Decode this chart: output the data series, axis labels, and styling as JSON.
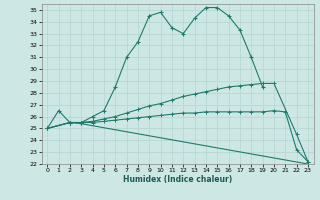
{
  "xlabel": "Humidex (Indice chaleur)",
  "background_color": "#cde8e4",
  "grid_color": "#b8d8d4",
  "line_color": "#1e7a6e",
  "xlim": [
    -0.5,
    23.5
  ],
  "ylim": [
    22,
    35.5
  ],
  "yticks": [
    22,
    23,
    24,
    25,
    26,
    27,
    28,
    29,
    30,
    31,
    32,
    33,
    34,
    35
  ],
  "xticks": [
    0,
    1,
    2,
    3,
    4,
    5,
    6,
    7,
    8,
    9,
    10,
    11,
    12,
    13,
    14,
    15,
    16,
    17,
    18,
    19,
    20,
    21,
    22,
    23
  ],
  "lines": [
    {
      "x": [
        0,
        1,
        2,
        3,
        4,
        5,
        6,
        7,
        8,
        9,
        10,
        11,
        12,
        13,
        14,
        15,
        16,
        17,
        18,
        19
      ],
      "y": [
        25.0,
        26.5,
        25.5,
        25.5,
        26.0,
        26.5,
        28.5,
        31.0,
        32.3,
        34.5,
        34.8,
        33.5,
        33.0,
        34.3,
        35.2,
        35.2,
        34.5,
        33.3,
        31.0,
        28.5
      ],
      "marker": true
    },
    {
      "x": [
        0,
        2,
        3,
        4,
        5,
        6,
        7,
        8,
        9,
        10,
        11,
        12,
        13,
        14,
        15,
        16,
        17,
        18,
        19,
        20,
        22,
        23
      ],
      "y": [
        25.0,
        25.5,
        25.5,
        25.6,
        25.8,
        26.0,
        26.3,
        26.6,
        26.9,
        27.1,
        27.4,
        27.7,
        27.9,
        28.1,
        28.3,
        28.5,
        28.6,
        28.7,
        28.8,
        28.8,
        24.5,
        22.2
      ],
      "marker": true
    },
    {
      "x": [
        0,
        2,
        3,
        4,
        5,
        6,
        7,
        8,
        9,
        10,
        11,
        12,
        13,
        14,
        15,
        16,
        17,
        18,
        19,
        20,
        21,
        22,
        23
      ],
      "y": [
        25.0,
        25.5,
        25.5,
        25.5,
        25.6,
        25.7,
        25.8,
        25.9,
        26.0,
        26.1,
        26.2,
        26.3,
        26.3,
        26.4,
        26.4,
        26.4,
        26.4,
        26.4,
        26.4,
        26.5,
        26.4,
        23.2,
        22.2
      ],
      "marker": true
    },
    {
      "x": [
        0,
        2,
        3,
        23
      ],
      "y": [
        25.0,
        25.5,
        25.4,
        22.0
      ],
      "marker": false
    }
  ]
}
